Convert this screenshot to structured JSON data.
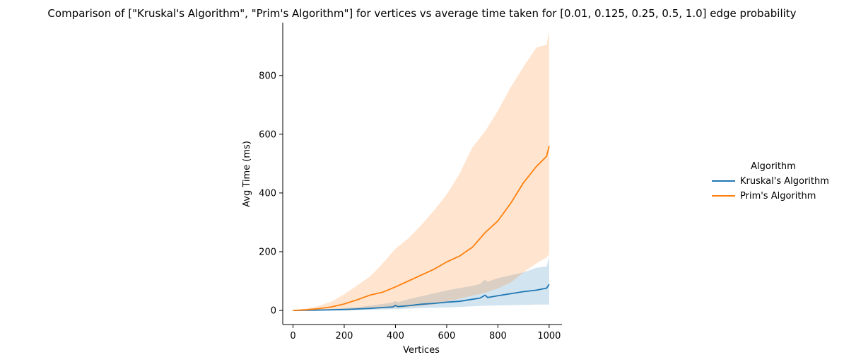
{
  "chart_data": {
    "type": "line",
    "title": "Comparison of [\"Kruskal's Algorithm\", \"Prim's Algorithm\"] for vertices vs average time taken for [0.01, 0.125, 0.25, 0.5, 1.0] edge probability",
    "xlabel": "Vertices",
    "ylabel": "Avg Time (ms)",
    "xlim": [
      -40,
      1050
    ],
    "ylim": [
      -48,
      980
    ],
    "xticks": [
      0,
      200,
      400,
      600,
      800,
      1000
    ],
    "yticks": [
      0,
      200,
      400,
      600,
      800
    ],
    "legend": {
      "title": "Algorithm",
      "placement": "right"
    },
    "series": [
      {
        "name": "Kruskal's Algorithm",
        "color": "#1f77b4",
        "x": [
          0,
          50,
          100,
          150,
          200,
          250,
          300,
          350,
          390,
          400,
          410,
          450,
          500,
          550,
          600,
          650,
          700,
          730,
          750,
          760,
          800,
          850,
          900,
          950,
          990,
          1000
        ],
        "y": [
          0,
          0.5,
          1,
          2,
          3,
          5,
          7,
          10,
          12,
          17,
          13,
          16,
          21,
          24,
          28,
          31,
          38,
          42,
          52,
          44,
          50,
          57,
          64,
          69,
          76,
          89
        ],
        "lower": [
          0,
          0,
          0,
          0.3,
          0.5,
          1,
          2,
          3,
          4,
          5,
          5,
          6,
          8,
          9,
          10,
          12,
          14,
          15,
          16,
          16,
          17,
          18,
          19,
          20,
          20,
          20
        ],
        "upper": [
          0.5,
          1.5,
          3,
          5,
          8,
          11,
          16,
          22,
          27,
          32,
          28,
          38,
          48,
          58,
          68,
          76,
          84,
          90,
          105,
          98,
          110,
          120,
          130,
          145,
          150,
          180
        ]
      },
      {
        "name": "Prim's Algorithm",
        "color": "#ff7f0e",
        "x": [
          0,
          50,
          100,
          150,
          200,
          250,
          300,
          350,
          400,
          450,
          500,
          550,
          600,
          650,
          700,
          750,
          800,
          850,
          900,
          950,
          990,
          1000
        ],
        "y": [
          0,
          2,
          6,
          12,
          22,
          36,
          52,
          62,
          80,
          100,
          120,
          140,
          165,
          185,
          215,
          265,
          305,
          365,
          435,
          490,
          525,
          560
        ],
        "lower": [
          0,
          0,
          0.5,
          1,
          2,
          3,
          5,
          7,
          9,
          12,
          15,
          20,
          30,
          40,
          50,
          60,
          75,
          95,
          130,
          160,
          180,
          190
        ],
        "upper": [
          1,
          6,
          15,
          30,
          55,
          85,
          115,
          160,
          210,
          245,
          290,
          340,
          395,
          465,
          555,
          610,
          680,
          760,
          830,
          895,
          905,
          950
        ]
      }
    ]
  }
}
